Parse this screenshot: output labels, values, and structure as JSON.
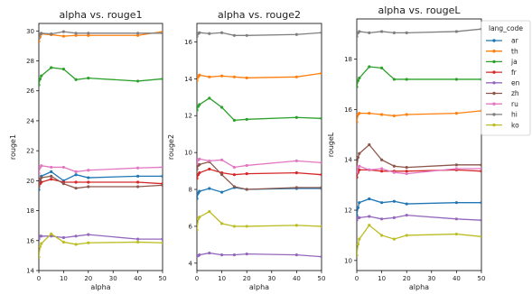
{
  "chart_data": [
    {
      "type": "line",
      "title": "alpha vs. rouge1",
      "xlabel": "alpha",
      "ylabel": "rouge1",
      "xlim": [
        0,
        50
      ],
      "ylim": [
        14,
        30.5
      ],
      "xticks": [
        0,
        10,
        20,
        30,
        40,
        50
      ],
      "yticks": [
        14,
        16,
        18,
        20,
        22,
        24,
        26,
        28,
        30
      ],
      "grid": false,
      "x": [
        0,
        0.5,
        1,
        5,
        10,
        15,
        20,
        40,
        50
      ],
      "series": [
        {
          "name": "ar",
          "values": [
            19.4,
            20.0,
            20.3,
            20.6,
            20.0,
            20.4,
            20.2,
            20.3,
            20.3
          ]
        },
        {
          "name": "th",
          "values": [
            29.3,
            29.6,
            29.8,
            29.75,
            29.65,
            29.7,
            29.7,
            29.7,
            29.95
          ]
        },
        {
          "name": "ja",
          "values": [
            26.4,
            26.8,
            27.0,
            27.55,
            27.45,
            26.75,
            26.85,
            26.65,
            26.8
          ]
        },
        {
          "name": "fr",
          "values": [
            19.7,
            19.8,
            19.9,
            20.1,
            19.9,
            19.9,
            19.9,
            19.9,
            19.8
          ]
        },
        {
          "name": "en",
          "values": [
            16.1,
            16.3,
            16.3,
            16.3,
            16.2,
            16.3,
            16.4,
            16.1,
            16.1
          ]
        },
        {
          "name": "zh",
          "values": [
            19.6,
            20.1,
            20.2,
            20.3,
            19.8,
            19.5,
            19.6,
            19.6,
            19.7
          ]
        },
        {
          "name": "ru",
          "values": [
            20.5,
            20.9,
            21.0,
            20.9,
            20.9,
            20.6,
            20.7,
            20.85,
            20.9
          ]
        },
        {
          "name": "hi",
          "values": [
            29.5,
            29.8,
            29.85,
            29.8,
            29.95,
            29.85,
            29.85,
            29.85,
            29.85
          ]
        },
        {
          "name": "ko",
          "values": [
            14.9,
            15.6,
            15.8,
            16.45,
            15.9,
            15.75,
            15.85,
            15.9,
            15.85
          ]
        }
      ]
    },
    {
      "type": "line",
      "title": "alpha vs. rouge2",
      "xlabel": "alpha",
      "ylabel": "rouge2",
      "xlim": [
        0,
        50
      ],
      "ylim": [
        3.6,
        17.0
      ],
      "xticks": [
        0,
        10,
        20,
        30,
        40,
        50
      ],
      "yticks": [
        4,
        6,
        8,
        10,
        12,
        14,
        16
      ],
      "grid": false,
      "x": [
        0,
        0.5,
        1,
        5,
        10,
        15,
        20,
        40,
        50
      ],
      "series": [
        {
          "name": "ar",
          "values": [
            7.5,
            7.8,
            7.9,
            8.05,
            7.85,
            8.1,
            8.0,
            8.05,
            8.05
          ]
        },
        {
          "name": "th",
          "values": [
            13.9,
            14.1,
            14.2,
            14.1,
            14.15,
            14.1,
            14.05,
            14.1,
            14.3
          ]
        },
        {
          "name": "ja",
          "values": [
            12.3,
            12.5,
            12.6,
            12.95,
            12.45,
            11.75,
            11.8,
            11.9,
            11.85
          ]
        },
        {
          "name": "fr",
          "values": [
            8.6,
            8.8,
            8.9,
            9.1,
            8.9,
            8.8,
            8.85,
            8.9,
            8.8
          ]
        },
        {
          "name": "en",
          "values": [
            4.4,
            4.4,
            4.45,
            4.55,
            4.45,
            4.45,
            4.5,
            4.45,
            4.35
          ]
        },
        {
          "name": "zh",
          "values": [
            9.1,
            9.3,
            9.35,
            9.5,
            8.8,
            8.15,
            8.0,
            8.1,
            8.1
          ]
        },
        {
          "name": "ru",
          "values": [
            9.4,
            9.6,
            9.65,
            9.55,
            9.6,
            9.2,
            9.3,
            9.55,
            9.45
          ]
        },
        {
          "name": "hi",
          "values": [
            16.3,
            16.45,
            16.5,
            16.45,
            16.5,
            16.35,
            16.35,
            16.4,
            16.5
          ]
        },
        {
          "name": "ko",
          "values": [
            5.8,
            6.4,
            6.5,
            6.8,
            6.15,
            6.0,
            6.0,
            6.05,
            6.0
          ]
        }
      ]
    },
    {
      "type": "line",
      "title": "alpha vs. rougeL",
      "xlabel": "alpha",
      "ylabel": "rougeL",
      "xlim": [
        0,
        50
      ],
      "ylim": [
        9.6,
        19.6
      ],
      "xticks": [
        0,
        10,
        20,
        30,
        40,
        50
      ],
      "yticks": [
        10,
        12,
        14,
        16,
        18
      ],
      "grid": false,
      "x": [
        0,
        0.5,
        1,
        5,
        10,
        15,
        20,
        40,
        50
      ],
      "series": [
        {
          "name": "ar",
          "values": [
            11.8,
            12.1,
            12.3,
            12.45,
            12.3,
            12.35,
            12.25,
            12.3,
            12.3
          ]
        },
        {
          "name": "th",
          "values": [
            15.5,
            15.8,
            15.85,
            15.85,
            15.8,
            15.75,
            15.8,
            15.85,
            15.95
          ]
        },
        {
          "name": "ja",
          "values": [
            16.9,
            17.15,
            17.25,
            17.7,
            17.65,
            17.2,
            17.2,
            17.2,
            17.2
          ]
        },
        {
          "name": "fr",
          "values": [
            13.3,
            13.5,
            13.6,
            13.6,
            13.55,
            13.55,
            13.55,
            13.6,
            13.55
          ]
        },
        {
          "name": "en",
          "values": [
            11.6,
            11.7,
            11.7,
            11.75,
            11.65,
            11.7,
            11.8,
            11.65,
            11.6
          ]
        },
        {
          "name": "zh",
          "values": [
            13.7,
            14.1,
            14.25,
            14.6,
            14.0,
            13.75,
            13.7,
            13.8,
            13.8
          ]
        },
        {
          "name": "ru",
          "values": [
            13.5,
            13.7,
            13.75,
            13.6,
            13.65,
            13.5,
            13.45,
            13.65,
            13.65
          ]
        },
        {
          "name": "hi",
          "values": [
            18.9,
            19.05,
            19.1,
            19.05,
            19.1,
            19.05,
            19.05,
            19.1,
            19.2
          ]
        },
        {
          "name": "ko",
          "values": [
            10.2,
            10.65,
            10.85,
            11.4,
            11.0,
            10.85,
            11.0,
            11.05,
            10.95
          ]
        }
      ]
    }
  ],
  "legend": {
    "title": "lang_code",
    "placement": "right",
    "items": [
      "ar",
      "th",
      "ja",
      "fr",
      "en",
      "zh",
      "ru",
      "hi",
      "ko"
    ]
  },
  "colors": {
    "ar": "#1f77b4",
    "th": "#ff7f0e",
    "ja": "#2ca02c",
    "fr": "#d62728",
    "en": "#9467bd",
    "zh": "#8c564b",
    "ru": "#e377c2",
    "hi": "#7f7f7f",
    "ko": "#bcbd22"
  }
}
